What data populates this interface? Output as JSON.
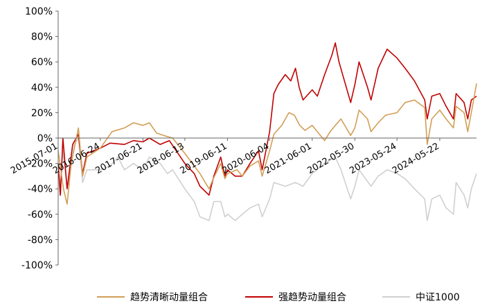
{
  "chart_data": {
    "type": "line",
    "title": "",
    "xlabel": "",
    "ylabel": "",
    "ylim": [
      -100,
      100
    ],
    "y_ticks": [
      "100%",
      "80%",
      "60%",
      "40%",
      "20%",
      "0%",
      "-20%",
      "-40%",
      "-60%",
      "-80%",
      "-100%"
    ],
    "x_ticks": [
      "2015-07-01",
      "2016-06-24",
      "2017-06-21",
      "2018-06-13",
      "2019-06-11",
      "2020-06-04",
      "2021-06-01",
      "2022-05-30",
      "2023-05-24",
      "2024-05-22"
    ],
    "x_range": [
      "2015-07-01",
      "2025-03-31"
    ],
    "grid": false,
    "legend_position": "bottom",
    "series": [
      {
        "name": "趋势清晰动量组合",
        "color": "#D29E55",
        "points": [
          [
            "2015-07-01",
            -10
          ],
          [
            "2015-08-15",
            -40
          ],
          [
            "2015-09-15",
            -52
          ],
          [
            "2015-10-20",
            -20
          ],
          [
            "2015-12-20",
            8
          ],
          [
            "2016-01-25",
            -30
          ],
          [
            "2016-03-01",
            -15
          ],
          [
            "2016-06-24",
            -8
          ],
          [
            "2016-10-01",
            5
          ],
          [
            "2017-01-15",
            8
          ],
          [
            "2017-04-01",
            12
          ],
          [
            "2017-06-21",
            10
          ],
          [
            "2017-08-15",
            12
          ],
          [
            "2017-10-15",
            4
          ],
          [
            "2017-12-15",
            2
          ],
          [
            "2018-03-01",
            0
          ],
          [
            "2018-06-13",
            -12
          ],
          [
            "2018-09-01",
            -22
          ],
          [
            "2018-10-20",
            -28
          ],
          [
            "2019-01-05",
            -40
          ],
          [
            "2019-02-10",
            -32
          ],
          [
            "2019-04-15",
            -20
          ],
          [
            "2019-05-20",
            -32
          ],
          [
            "2019-06-11",
            -28
          ],
          [
            "2019-09-01",
            -25
          ],
          [
            "2019-10-15",
            -30
          ],
          [
            "2019-12-20",
            -22
          ],
          [
            "2020-03-01",
            -18
          ],
          [
            "2020-04-01",
            -30
          ],
          [
            "2020-06-04",
            -10
          ],
          [
            "2020-07-10",
            3
          ],
          [
            "2020-09-15",
            10
          ],
          [
            "2020-11-15",
            20
          ],
          [
            "2021-01-01",
            18
          ],
          [
            "2021-02-15",
            10
          ],
          [
            "2021-04-01",
            6
          ],
          [
            "2021-06-01",
            10
          ],
          [
            "2021-09-15",
            -2
          ],
          [
            "2021-11-01",
            5
          ],
          [
            "2021-12-15",
            10
          ],
          [
            "2022-02-01",
            15
          ],
          [
            "2022-04-25",
            2
          ],
          [
            "2022-05-30",
            8
          ],
          [
            "2022-07-05",
            22
          ],
          [
            "2022-09-15",
            15
          ],
          [
            "2022-10-15",
            5
          ],
          [
            "2022-12-15",
            12
          ],
          [
            "2023-02-15",
            18
          ],
          [
            "2023-05-24",
            20
          ],
          [
            "2023-08-01",
            28
          ],
          [
            "2023-10-20",
            30
          ],
          [
            "2024-01-15",
            24
          ],
          [
            "2024-02-05",
            -5
          ],
          [
            "2024-03-15",
            15
          ],
          [
            "2024-05-22",
            22
          ],
          [
            "2024-07-15",
            15
          ],
          [
            "2024-09-15",
            8
          ],
          [
            "2024-10-08",
            25
          ],
          [
            "2024-12-15",
            20
          ],
          [
            "2025-01-15",
            5
          ],
          [
            "2025-02-15",
            20
          ],
          [
            "2025-03-31",
            43
          ]
        ]
      },
      {
        "name": "强趋势动量组合",
        "color": "#C00000",
        "points": [
          [
            "2015-07-01",
            -20
          ],
          [
            "2015-07-20",
            -45
          ],
          [
            "2015-08-10",
            0
          ],
          [
            "2015-09-15",
            -40
          ],
          [
            "2015-11-01",
            -5
          ],
          [
            "2015-12-20",
            3
          ],
          [
            "2016-01-25",
            -28
          ],
          [
            "2016-03-01",
            -12
          ],
          [
            "2016-06-24",
            -8
          ],
          [
            "2016-09-15",
            -4
          ],
          [
            "2017-01-15",
            -5
          ],
          [
            "2017-04-01",
            -2
          ],
          [
            "2017-06-21",
            -3
          ],
          [
            "2017-08-15",
            0
          ],
          [
            "2017-11-15",
            -5
          ],
          [
            "2018-02-01",
            -2
          ],
          [
            "2018-06-13",
            -20
          ],
          [
            "2018-09-01",
            -28
          ],
          [
            "2018-10-20",
            -38
          ],
          [
            "2019-01-05",
            -45
          ],
          [
            "2019-02-15",
            -30
          ],
          [
            "2019-04-15",
            -15
          ],
          [
            "2019-05-20",
            -30
          ],
          [
            "2019-06-11",
            -25
          ],
          [
            "2019-08-15",
            -30
          ],
          [
            "2019-10-15",
            -30
          ],
          [
            "2019-12-20",
            -20
          ],
          [
            "2020-03-01",
            -10
          ],
          [
            "2020-04-01",
            -25
          ],
          [
            "2020-06-04",
            5
          ],
          [
            "2020-07-10",
            35
          ],
          [
            "2020-08-15",
            42
          ],
          [
            "2020-10-15",
            50
          ],
          [
            "2020-12-01",
            45
          ],
          [
            "2021-01-10",
            55
          ],
          [
            "2021-02-10",
            40
          ],
          [
            "2021-03-15",
            30
          ],
          [
            "2021-06-01",
            38
          ],
          [
            "2021-07-15",
            33
          ],
          [
            "2021-09-15",
            50
          ],
          [
            "2021-11-15",
            65
          ],
          [
            "2021-12-15",
            75
          ],
          [
            "2022-01-15",
            60
          ],
          [
            "2022-04-25",
            28
          ],
          [
            "2022-05-30",
            42
          ],
          [
            "2022-07-05",
            60
          ],
          [
            "2022-09-15",
            40
          ],
          [
            "2022-10-15",
            30
          ],
          [
            "2022-12-15",
            55
          ],
          [
            "2023-03-01",
            70
          ],
          [
            "2023-05-24",
            63
          ],
          [
            "2023-08-01",
            55
          ],
          [
            "2023-10-20",
            45
          ],
          [
            "2024-01-15",
            30
          ],
          [
            "2024-02-05",
            15
          ],
          [
            "2024-03-15",
            33
          ],
          [
            "2024-05-22",
            35
          ],
          [
            "2024-07-15",
            25
          ],
          [
            "2024-09-15",
            15
          ],
          [
            "2024-10-08",
            35
          ],
          [
            "2024-12-15",
            28
          ],
          [
            "2025-01-15",
            15
          ],
          [
            "2025-02-15",
            30
          ],
          [
            "2025-03-31",
            33
          ]
        ]
      },
      {
        "name": "中证1000",
        "color": "#D0D0D0",
        "points": [
          [
            "2015-07-01",
            -20
          ],
          [
            "2015-07-15",
            -45
          ],
          [
            "2015-08-10",
            -10
          ],
          [
            "2015-09-15",
            -40
          ],
          [
            "2015-11-15",
            -5
          ],
          [
            "2015-12-20",
            0
          ],
          [
            "2016-01-25",
            -35
          ],
          [
            "2016-03-01",
            -25
          ],
          [
            "2016-06-24",
            -25
          ],
          [
            "2016-09-15",
            -22
          ],
          [
            "2016-11-20",
            -15
          ],
          [
            "2017-01-15",
            -25
          ],
          [
            "2017-04-01",
            -20
          ],
          [
            "2017-06-21",
            -25
          ],
          [
            "2017-08-15",
            -15
          ],
          [
            "2017-11-15",
            -20
          ],
          [
            "2018-01-15",
            -28
          ],
          [
            "2018-03-01",
            -25
          ],
          [
            "2018-06-13",
            -40
          ],
          [
            "2018-09-01",
            -50
          ],
          [
            "2018-10-20",
            -62
          ],
          [
            "2019-01-05",
            -65
          ],
          [
            "2019-02-15",
            -50
          ],
          [
            "2019-04-15",
            -50
          ],
          [
            "2019-05-20",
            -62
          ],
          [
            "2019-06-11",
            -60
          ],
          [
            "2019-08-15",
            -65
          ],
          [
            "2019-10-15",
            -60
          ],
          [
            "2019-12-20",
            -55
          ],
          [
            "2020-03-01",
            -52
          ],
          [
            "2020-04-01",
            -62
          ],
          [
            "2020-06-04",
            -48
          ],
          [
            "2020-07-10",
            -35
          ],
          [
            "2020-10-15",
            -38
          ],
          [
            "2021-01-10",
            -35
          ],
          [
            "2021-03-15",
            -38
          ],
          [
            "2021-06-01",
            -28
          ],
          [
            "2021-09-15",
            -20
          ],
          [
            "2021-12-15",
            -15
          ],
          [
            "2022-02-01",
            -25
          ],
          [
            "2022-04-25",
            -48
          ],
          [
            "2022-05-30",
            -38
          ],
          [
            "2022-07-05",
            -25
          ],
          [
            "2022-10-15",
            -38
          ],
          [
            "2022-12-15",
            -30
          ],
          [
            "2023-03-01",
            -25
          ],
          [
            "2023-05-24",
            -28
          ],
          [
            "2023-08-01",
            -32
          ],
          [
            "2023-10-20",
            -40
          ],
          [
            "2024-01-15",
            -48
          ],
          [
            "2024-02-05",
            -65
          ],
          [
            "2024-03-15",
            -48
          ],
          [
            "2024-05-22",
            -45
          ],
          [
            "2024-07-15",
            -55
          ],
          [
            "2024-09-15",
            -60
          ],
          [
            "2024-10-08",
            -35
          ],
          [
            "2024-12-15",
            -45
          ],
          [
            "2025-01-15",
            -55
          ],
          [
            "2025-02-15",
            -40
          ],
          [
            "2025-03-31",
            -28
          ]
        ]
      }
    ]
  }
}
